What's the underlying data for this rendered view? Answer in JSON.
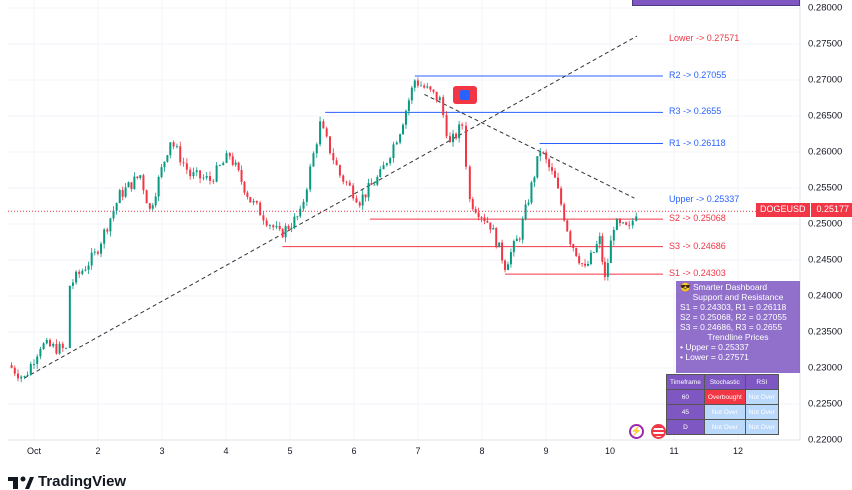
{
  "chart_data": {
    "type": "candlestick",
    "symbol": "DOGEUSD",
    "last_price": 0.25177,
    "x_ticks": [
      "Oct",
      "2",
      "3",
      "4",
      "5",
      "6",
      "7",
      "8",
      "9",
      "10",
      "11",
      "12"
    ],
    "y_ticks": [
      "0.28000",
      "0.27500",
      "0.27000",
      "0.26500",
      "0.26000",
      "0.25500",
      "0.25000",
      "0.24500",
      "0.24000",
      "0.23500",
      "0.23000",
      "0.22500",
      "0.22000"
    ],
    "ylim": [
      0.22,
      0.28
    ],
    "xlim_days": [
      0.6,
      12.6
    ],
    "price_path": [
      [
        0.6,
        0.2304
      ],
      [
        0.85,
        0.2286
      ],
      [
        1.1,
        0.2332
      ],
      [
        1.5,
        0.2325
      ],
      [
        1.56,
        0.2415
      ],
      [
        1.95,
        0.2457
      ],
      [
        2.34,
        0.254
      ],
      [
        2.66,
        0.2568
      ],
      [
        2.81,
        0.2519
      ],
      [
        3.13,
        0.2617
      ],
      [
        3.44,
        0.2568
      ],
      [
        3.75,
        0.2561
      ],
      [
        4.06,
        0.2596
      ],
      [
        4.38,
        0.2533
      ],
      [
        4.84,
        0.2485
      ],
      [
        5.16,
        0.2513
      ],
      [
        5.47,
        0.2638
      ],
      [
        5.78,
        0.2568
      ],
      [
        6.09,
        0.2533
      ],
      [
        6.41,
        0.2568
      ],
      [
        6.72,
        0.2631
      ],
      [
        6.95,
        0.27
      ],
      [
        7.34,
        0.2672
      ],
      [
        7.5,
        0.261
      ],
      [
        7.69,
        0.2638
      ],
      [
        7.81,
        0.2533
      ],
      [
        8.13,
        0.2499
      ],
      [
        8.36,
        0.2443
      ],
      [
        8.59,
        0.2485
      ],
      [
        8.91,
        0.2603
      ],
      [
        9.14,
        0.2561
      ],
      [
        9.38,
        0.2478
      ],
      [
        9.61,
        0.2436
      ],
      [
        9.84,
        0.2478
      ],
      [
        9.92,
        0.2422
      ],
      [
        10.06,
        0.2499
      ],
      [
        10.3,
        0.2492
      ],
      [
        10.41,
        0.2518
      ]
    ],
    "levels": [
      {
        "label": "Lower -> 0.27571",
        "value": 0.27571,
        "color": "#f23645",
        "start_day": null
      },
      {
        "label": "R2 -> 0.27055",
        "value": 0.27055,
        "color": "#2962ff",
        "start_day": 6.95
      },
      {
        "label": "R3 -> 0.2655",
        "value": 0.2655,
        "color": "#2962ff",
        "start_day": 5.55
      },
      {
        "label": "R1 -> 0.26118",
        "value": 0.26118,
        "color": "#2962ff",
        "start_day": 8.9
      },
      {
        "label": "Upper -> 0.25337",
        "value": 0.25337,
        "color": "#2962ff",
        "start_day": null
      },
      {
        "label": "S2 -> 0.25068",
        "value": 0.25068,
        "color": "#f23645",
        "start_day": 6.25
      },
      {
        "label": "S3 -> 0.24686",
        "value": 0.24686,
        "color": "#f23645",
        "start_day": 4.88
      },
      {
        "label": "S1 -> 0.24303",
        "value": 0.24303,
        "color": "#f23645",
        "start_day": 8.36
      }
    ],
    "trendlines": [
      {
        "from": [
          0.85,
          0.2286
        ],
        "to": [
          10.42,
          0.2761
        ]
      },
      {
        "from": [
          7.1,
          0.268
        ],
        "to": [
          10.38,
          0.2536
        ]
      }
    ],
    "colors": {
      "up": "#089981",
      "down": "#f23645"
    }
  },
  "dashboard": {
    "title": "😎 Smarter Dashboard",
    "sr_header": "Support and Resistance",
    "s1": "S1 = 0.24303, R1 = 0.26118",
    "s2": "S2 = 0.25068, R2 = 0.27055",
    "s3": "S3 = 0.24686, R3 = 0.2655",
    "trend_header": "Trendline Prices",
    "upper": "• Upper = 0.25337",
    "lower": "• Lower = 0.27571"
  },
  "price_tag": {
    "symbol": "DOGEUSD",
    "price": "0.25177"
  },
  "table": {
    "headers": [
      "Timeframe",
      "Stochastic",
      "RSI"
    ],
    "rows": [
      [
        "60",
        "Overbought",
        "Not Over"
      ],
      [
        "45",
        "Not Over",
        "Not Over"
      ],
      [
        "D",
        "Not Over",
        "Not Over"
      ]
    ]
  },
  "logo": "TradingView"
}
